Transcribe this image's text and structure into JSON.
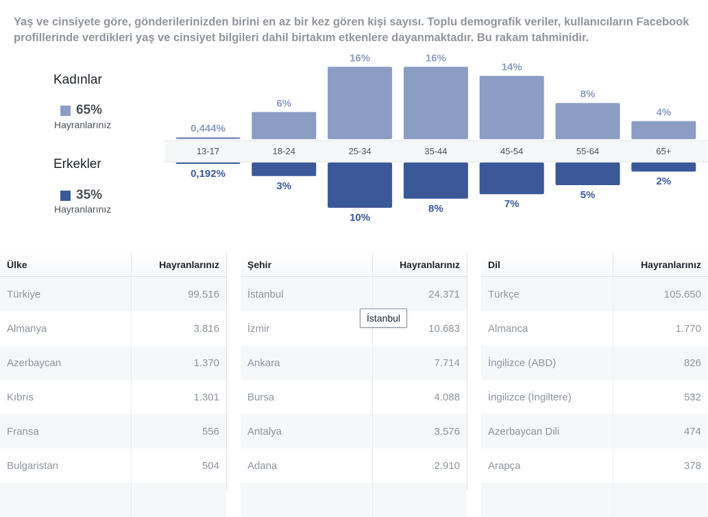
{
  "description": "Yaş ve cinsiyete göre, gönderilerinizden birini en az bir kez gören kişi sayısı. Toplu demografik veriler, kullanıcıların Facebook profillerinde verdikleri yaş ve cinsiyet bilgileri dahil birtakım etkenlere dayanmaktadır. Bu rakam tahminidir.",
  "legend": {
    "women": {
      "title": "Kadınlar",
      "percent": "65%",
      "sub": "Hayranlarınız",
      "color": "#8b9dc3"
    },
    "men": {
      "title": "Erkekler",
      "percent": "35%",
      "sub": "Hayranlarınız",
      "color": "#3b5998"
    }
  },
  "chart_data": {
    "type": "bar",
    "categories": [
      "13-17",
      "18-24",
      "25-34",
      "35-44",
      "45-54",
      "55-64",
      "65+"
    ],
    "series": [
      {
        "name": "Kadınlar",
        "values": [
          0.444,
          6,
          16,
          16,
          14,
          8,
          4
        ],
        "labels": [
          "0,444%",
          "6%",
          "16%",
          "16%",
          "14%",
          "8%",
          "4%"
        ],
        "color": "#8b9dc3"
      },
      {
        "name": "Erkekler",
        "values": [
          0.192,
          3,
          10,
          8,
          7,
          5,
          2
        ],
        "labels": [
          "0,192%",
          "3%",
          "10%",
          "8%",
          "7%",
          "5%",
          "2%"
        ],
        "color": "#3b5998"
      }
    ],
    "ylabel": "",
    "xlabel": "",
    "grid": false
  },
  "tables": {
    "country": {
      "label_header": "Ülke",
      "value_header": "Hayranlarınız",
      "rows": [
        {
          "label": "Türkiye",
          "value": "99.516"
        },
        {
          "label": "Almanya",
          "value": "3.816"
        },
        {
          "label": "Azerbaycan",
          "value": "1.370"
        },
        {
          "label": "Kıbrıs",
          "value": "1.301"
        },
        {
          "label": "Fransa",
          "value": "556"
        },
        {
          "label": "Bulgaristan",
          "value": "504"
        }
      ]
    },
    "city": {
      "label_header": "Şehir",
      "value_header": "Hayranlarınız",
      "rows": [
        {
          "label": "İstanbul",
          "value": "24.371"
        },
        {
          "label": "İzmir",
          "value": "10.683"
        },
        {
          "label": "Ankara",
          "value": "7.714"
        },
        {
          "label": "Bursa",
          "value": "4.088"
        },
        {
          "label": "Antalya",
          "value": "3.576"
        },
        {
          "label": "Adana",
          "value": "2.910"
        }
      ]
    },
    "language": {
      "label_header": "Dil",
      "value_header": "Hayranlarınız",
      "rows": [
        {
          "label": "Türkçe",
          "value": "105.650"
        },
        {
          "label": "Almanca",
          "value": "1.770"
        },
        {
          "label": "İngilizce (ABD)",
          "value": "826"
        },
        {
          "label": "İngilizce (İngiltere)",
          "value": "532"
        },
        {
          "label": "Azerbaycan Dili",
          "value": "474"
        },
        {
          "label": "Arapça",
          "value": "378"
        }
      ]
    }
  },
  "tooltip": "İstanbul"
}
